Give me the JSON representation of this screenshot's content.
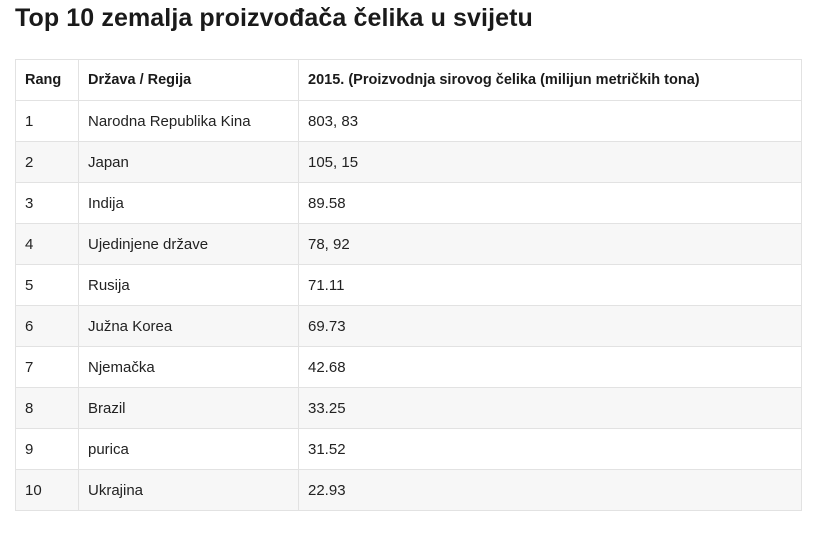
{
  "page": {
    "title": "Top 10 zemalja proizvođača čelika u svijetu"
  },
  "table": {
    "headers": [
      "Rang",
      "Država / Regija",
      "2015. (Proizvodnja sirovog čelika (milijun metričkih tona)"
    ],
    "rows": [
      [
        "1",
        "Narodna Republika Kina",
        "803, 83"
      ],
      [
        "2",
        "Japan",
        "105, 15"
      ],
      [
        "3",
        "Indija",
        "89.58"
      ],
      [
        "4",
        "Ujedinjene države",
        "78, 92"
      ],
      [
        "5",
        "Rusija",
        "71.11"
      ],
      [
        "6",
        "Južna Korea",
        "69.73"
      ],
      [
        "7",
        "Njemačka",
        "42.68"
      ],
      [
        "8",
        "Brazil",
        "33.25"
      ],
      [
        "9",
        "purica",
        "31.52"
      ],
      [
        "10",
        "Ukrajina",
        "22.93"
      ]
    ]
  },
  "colors": {
    "row_stripe": "#f7f7f7",
    "border": "#e2e2e2",
    "text": "#1f1f1f"
  }
}
